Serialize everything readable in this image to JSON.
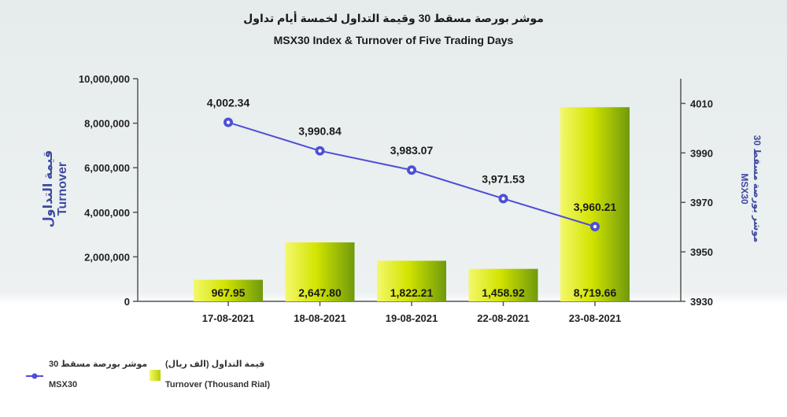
{
  "chart_data": {
    "type": "bar",
    "title": "موشر بورصة مسقط 30 وقيمة التداول لخمسة أيام تداول",
    "subtitle": "MSX30 Index & Turnover of Five Trading Days",
    "categories": [
      "17-08-2021",
      "18-08-2021",
      "19-08-2021",
      "22-08-2021",
      "23-08-2021"
    ],
    "series": [
      {
        "name": "Turnover (Thousand Rial)",
        "name_ar": "قيمة التداول (الف ريال)",
        "type": "bar",
        "axis": "left",
        "values": [
          967950,
          2647800,
          1822210,
          1458920,
          8719660
        ],
        "labels": [
          "967.95",
          "2,647.80",
          "1,822.21",
          "1,458.92",
          "8,719.66"
        ],
        "color": "#c8dc00"
      },
      {
        "name": "MSX30",
        "name_ar": "موشر بورصة مسقط 30",
        "type": "line",
        "axis": "right",
        "values": [
          4002.34,
          3990.84,
          3983.07,
          3971.53,
          3960.21
        ],
        "labels": [
          "4,002.34",
          "3,990.84",
          "3,983.07",
          "3,971.53",
          "3,960.21"
        ],
        "color": "#4e4fd6"
      }
    ],
    "y_left": {
      "label": "Turnover",
      "label_ar": "قيمة التداول",
      "ylim": [
        0,
        10000000
      ],
      "ticks": [
        "0",
        "2,000,000",
        "4,000,000",
        "6,000,000",
        "8,000,000",
        "10,000,000"
      ]
    },
    "y_right": {
      "label": "MSX30",
      "label_ar": "موشر بورصة مسقط 30",
      "ylim": [
        3930,
        4020
      ],
      "ticks": [
        "3930",
        "3950",
        "3970",
        "3990",
        "4010"
      ],
      "tick_values": [
        3930,
        3950,
        3970,
        3990,
        4010
      ]
    },
    "grid": false,
    "legend_position": "bottom-left"
  }
}
